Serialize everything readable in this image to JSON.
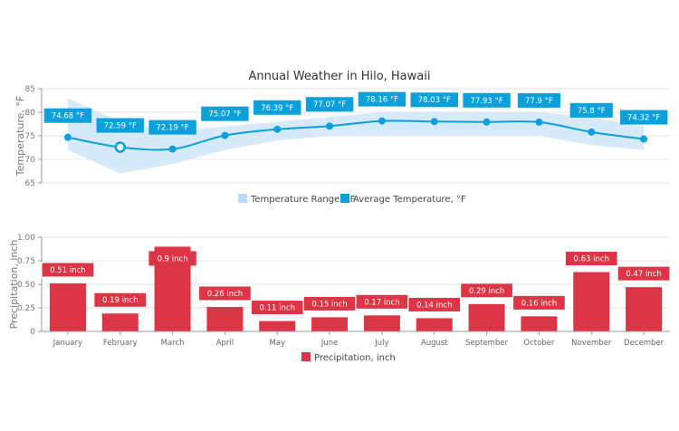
{
  "chart_data": [
    {
      "type": "line",
      "title": "Annual Weather in Hilo, Hawaii",
      "xlabel": "",
      "ylabel": "Temperature, °F",
      "ylim": [
        65,
        85
      ],
      "yticks": [
        "65",
        "70",
        "75",
        "80",
        "85"
      ],
      "grid": true,
      "legend_position": "bottom",
      "categories": [
        "January",
        "February",
        "March",
        "April",
        "May",
        "June",
        "July",
        "August",
        "September",
        "October",
        "November",
        "December"
      ],
      "series": [
        {
          "name": "Temperature Range, °F",
          "kind": "range-area",
          "color": "#cfe6fb",
          "low": [
            72,
            67,
            69,
            72,
            74,
            75,
            75,
            75,
            75,
            75,
            73,
            72
          ],
          "high": [
            83,
            78,
            76,
            77,
            78,
            79,
            80,
            80,
            80,
            80,
            79,
            77
          ]
        },
        {
          "name": "Average Temperature, °F",
          "kind": "spline",
          "color": "#0aa0dc",
          "values": [
            74.68,
            72.59,
            72.19,
            75.07,
            76.39,
            77.07,
            78.16,
            78.03,
            77.93,
            77.9,
            75.8,
            74.32
          ],
          "labels": [
            "74.68 °F",
            "72.59 °F",
            "72.19 °F",
            "75.07 °F",
            "76.39 °F",
            "77.07 °F",
            "78.16 °F",
            "78.03 °F",
            "77.93 °F",
            "77.9 °F",
            "75.8 °F",
            "74.32 °F"
          ],
          "hovered_index": 1
        }
      ]
    },
    {
      "type": "bar",
      "title": "",
      "xlabel": "",
      "ylabel": "Precipitation, inch",
      "ylim": [
        0,
        1
      ],
      "yticks": [
        "0",
        "0.25",
        "0.50",
        "0.75",
        "1.00"
      ],
      "grid": true,
      "legend_position": "bottom",
      "categories": [
        "January",
        "February",
        "March",
        "April",
        "May",
        "June",
        "July",
        "August",
        "September",
        "October",
        "November",
        "December"
      ],
      "series": [
        {
          "name": "Precipitation, inch",
          "color": "#dc3545",
          "values": [
            0.51,
            0.19,
            0.9,
            0.26,
            0.11,
            0.15,
            0.17,
            0.14,
            0.29,
            0.16,
            0.63,
            0.47
          ],
          "labels": [
            "0.51 inch",
            "0.19 inch",
            "0.9 inch",
            "0.26 inch",
            "0.11 inch",
            "0.15 inch",
            "0.17 inch",
            "0.14 inch",
            "0.29 inch",
            "0.16 inch",
            "0.63 inch",
            "0.47 inch"
          ]
        }
      ]
    }
  ]
}
